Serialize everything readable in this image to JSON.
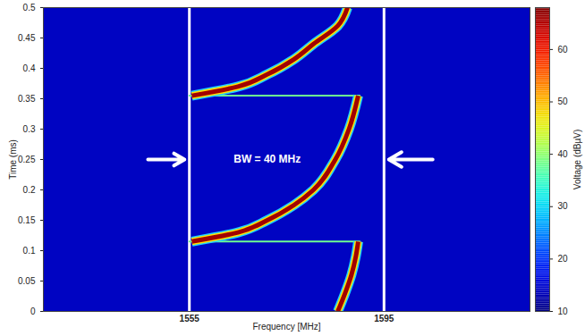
{
  "chart_data": {
    "type": "spectrogram",
    "xlabel": "Frequency [MHz]",
    "ylabel": "Time (ms)",
    "xlim": [
      1525,
      1625
    ],
    "xticks": [
      1555,
      1595
    ],
    "ylim": [
      0,
      0.5
    ],
    "yticks": [
      0,
      0.05,
      0.1,
      0.15,
      0.2,
      0.25,
      0.3,
      0.35,
      0.4,
      0.45,
      0.5
    ],
    "grid": "x",
    "series": [
      {
        "x": [
          1585.5,
          1587,
          1588.3,
          1589.2,
          1589.7
        ],
        "values": [
          0,
          0.03,
          0.06,
          0.09,
          0.115
        ]
      },
      {
        "x": [
          1555.5,
          1565,
          1571,
          1576.5,
          1580.5,
          1585,
          1587.8,
          1589.7
        ],
        "values": [
          0.115,
          0.13,
          0.15,
          0.175,
          0.2,
          0.25,
          0.3,
          0.355
        ]
      },
      {
        "x": [
          1555.5,
          1565,
          1571,
          1576.5,
          1580.5,
          1585.5,
          1587.5
        ],
        "values": [
          0.355,
          0.37,
          0.39,
          0.415,
          0.44,
          0.47,
          0.5
        ]
      }
    ],
    "flyback": [
      {
        "x": [
          1555,
          1590
        ],
        "y": 0.115
      },
      {
        "x": [
          1555,
          1590
        ],
        "y": 0.355
      }
    ],
    "signal_level": 66,
    "flyback_level": 38,
    "noise_level": 14,
    "colorbar": {
      "label": "Voltage (dBµV)",
      "lim": [
        10,
        68
      ],
      "ticks": [
        10,
        20,
        30,
        40,
        50,
        60
      ]
    },
    "annotations": [
      {
        "text": "BW = 40 MHz",
        "x": 1571,
        "y": 0.25
      }
    ],
    "arrows": [
      {
        "x1": 1546.5,
        "x2": 1554,
        "y": 0.25
      },
      {
        "x1": 1605,
        "x2": 1596,
        "y": 0.25
      }
    ]
  }
}
